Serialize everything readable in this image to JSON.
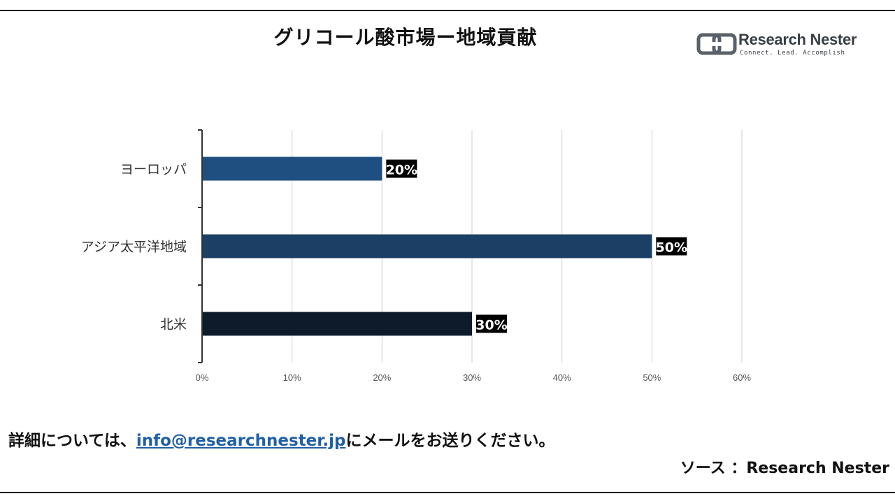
{
  "header": {
    "title": "グリコール酸市場ー地域貢献"
  },
  "logo": {
    "name": "Research Nester",
    "tagline": "Connect. Lead. Accomplish"
  },
  "chart_data": {
    "type": "bar",
    "orientation": "horizontal",
    "title": "グリコール酸市場ー地域貢献",
    "categories": [
      "ヨーロッパ",
      "アジア太平洋地域",
      "北米"
    ],
    "values": [
      20,
      50,
      30
    ],
    "data_labels": [
      "20%",
      "50%",
      "30%"
    ],
    "bar_colors": [
      "#1f4e80",
      "#1c3f66",
      "#0d1b2a"
    ],
    "xlim": [
      0,
      60
    ],
    "x_ticks": [
      0,
      10,
      20,
      30,
      40,
      50,
      60
    ],
    "x_tick_labels": [
      "0%",
      "10%",
      "20%",
      "30%",
      "40%",
      "50%",
      "60%"
    ],
    "xlabel": "",
    "ylabel": "",
    "grid": "vertical",
    "legend": "none"
  },
  "footer": {
    "note_prefix": "詳細については、",
    "email": "info@researchnester.jp",
    "note_suffix": "にメールをお送りください。",
    "source": "ソース ：Research Nester"
  },
  "colors": {
    "grid": "#cfcfcf",
    "axis": "#333333",
    "label_bg": "#000000",
    "label_text": "#ffffff",
    "email_link": "#1f5fa8"
  }
}
